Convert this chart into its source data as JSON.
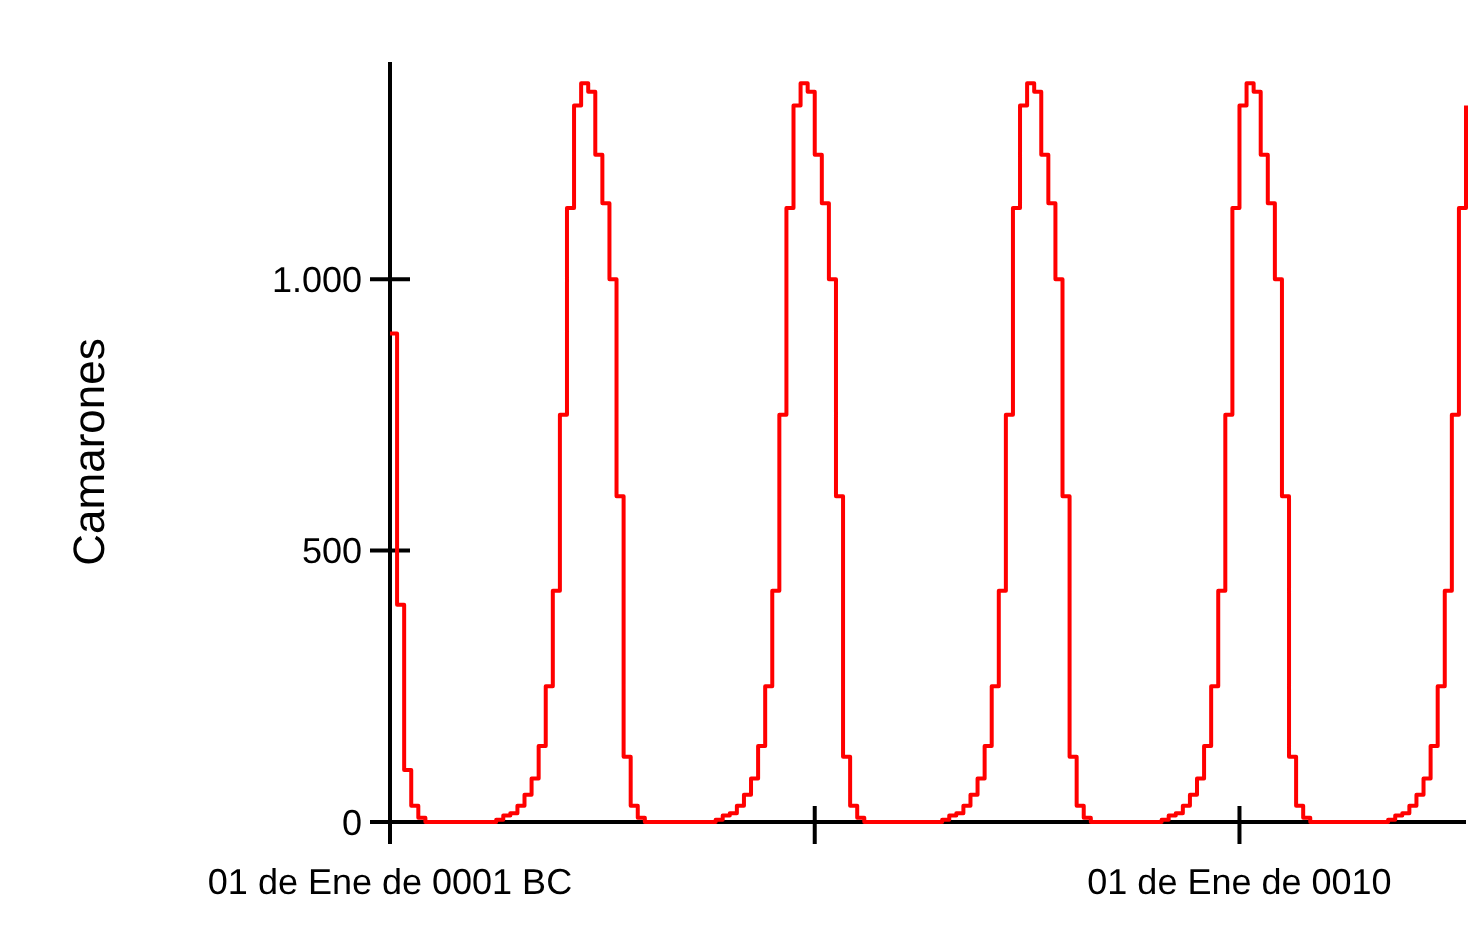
{
  "chart_data": {
    "type": "step",
    "ylabel": "Camarones",
    "color": "#ff0000",
    "ylim": [
      0,
      1400
    ],
    "yticks": [
      0,
      500,
      {
        "value": 1000,
        "label": "1.000"
      }
    ],
    "categories": [
      "01 de Ene de 0001 BC",
      null,
      null,
      null,
      null,
      null,
      null,
      null,
      null,
      null,
      null,
      null,
      null,
      null,
      null,
      null,
      null,
      null,
      null,
      null,
      null,
      null,
      null,
      null,
      null,
      null,
      null,
      null,
      null,
      null,
      null,
      null,
      null,
      null,
      null,
      null,
      null,
      null,
      null,
      null,
      null,
      null,
      null,
      null,
      null,
      null,
      null,
      null,
      null,
      null,
      null,
      null,
      null,
      null,
      null,
      null,
      null,
      null,
      null,
      null,
      null,
      null,
      null,
      null,
      null,
      null,
      null,
      null,
      null,
      null,
      null,
      null,
      null,
      null,
      null,
      null,
      null,
      null,
      null,
      null,
      null,
      null,
      null,
      null,
      null,
      null,
      null,
      null,
      null,
      null,
      null,
      null,
      null,
      null,
      null,
      null,
      null,
      null,
      null,
      null,
      null,
      null,
      null,
      null,
      null,
      null,
      null,
      null,
      null,
      null,
      null,
      null,
      null,
      null,
      null,
      null,
      null,
      null,
      null,
      null,
      "01 de Ene de 0010",
      null,
      null,
      null,
      null,
      null,
      null,
      null,
      null,
      null,
      null,
      null,
      null,
      null,
      null,
      null,
      null,
      null,
      null,
      null,
      null,
      null,
      null,
      null,
      null,
      null,
      null,
      null,
      null,
      null,
      null,
      null,
      null
    ],
    "values": [
      900,
      400,
      96,
      30,
      8,
      0,
      0,
      0,
      0,
      0,
      0,
      0,
      0,
      0,
      0,
      4,
      12,
      16,
      30,
      50,
      80,
      140,
      250,
      426,
      750,
      1131,
      1320,
      1361,
      1345,
      1229,
      1140,
      1000,
      600,
      120,
      30,
      8,
      0,
      0,
      0,
      0,
      0,
      0,
      0,
      0,
      0,
      0,
      4,
      12,
      16,
      30,
      50,
      80,
      140,
      250,
      426,
      750,
      1131,
      1320,
      1361,
      1345,
      1229,
      1140,
      1000,
      600,
      120,
      30,
      8,
      0,
      0,
      0,
      0,
      0,
      0,
      0,
      0,
      0,
      0,
      0,
      4,
      12,
      16,
      30,
      50,
      80,
      140,
      250,
      426,
      750,
      1131,
      1320,
      1361,
      1345,
      1229,
      1140,
      1000,
      600,
      120,
      30,
      8,
      0,
      0,
      0,
      0,
      0,
      0,
      0,
      0,
      0,
      0,
      4,
      12,
      16,
      30,
      50,
      80,
      140,
      250,
      426,
      750,
      1131,
      1320,
      1361,
      1345,
      1229,
      1140,
      1000,
      600,
      120,
      30,
      8,
      0,
      0,
      0,
      0,
      0,
      0,
      0,
      0,
      0,
      0,
      0,
      4,
      12,
      16,
      30,
      50,
      80,
      140,
      250,
      426,
      750,
      1131,
      1320
    ]
  }
}
